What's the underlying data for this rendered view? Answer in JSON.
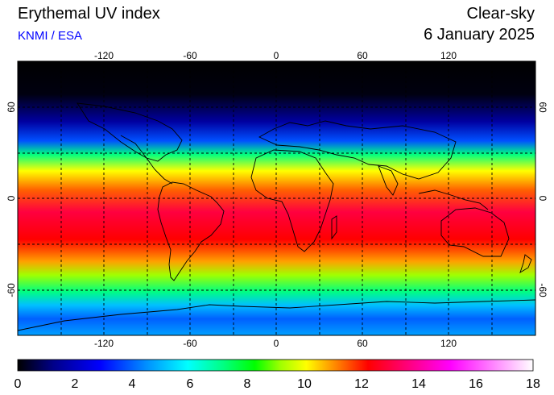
{
  "header": {
    "title": "Erythemal UV index",
    "source": "KNMI / ESA",
    "sky_condition": "Clear-sky",
    "date": "6 January 2025"
  },
  "map": {
    "lon_ticks": [
      "-120",
      "-60",
      "0",
      "60",
      "120"
    ],
    "lat_ticks": [
      "60",
      "0",
      "-60"
    ],
    "grid_lines": "dotted"
  },
  "colorbar": {
    "min": 0,
    "max": 18,
    "tick_labels": [
      "0",
      "2",
      "4",
      "6",
      "8",
      "10",
      "12",
      "14",
      "16",
      "18"
    ],
    "colors": [
      "#000000",
      "#00008b",
      "#0000ff",
      "#00a0ff",
      "#00ffff",
      "#00ff80",
      "#00ff00",
      "#a0ff00",
      "#ffff00",
      "#ff8000",
      "#ff0000",
      "#ff0080",
      "#ff00ff",
      "#ff80ff",
      "#ffffff"
    ]
  }
}
